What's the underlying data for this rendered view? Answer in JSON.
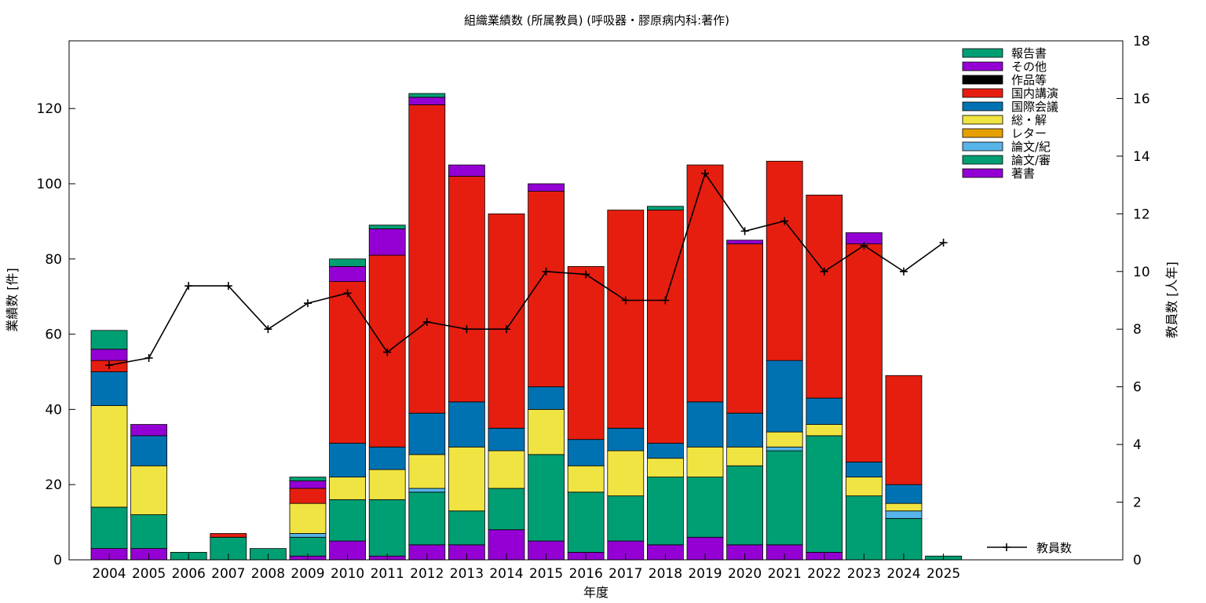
{
  "chart_data": {
    "type": "bar",
    "stacked": true,
    "title": "組織業績数 (所属教員) (呼吸器・膠原病内科:著作)",
    "xlabel": "年度",
    "ylabel": "業績数 [件]",
    "y2label": "教員数 [人年]",
    "ylim": [
      0,
      138
    ],
    "y2lim": [
      0,
      18
    ],
    "yticks": [
      0,
      20,
      40,
      60,
      80,
      100,
      120
    ],
    "y2ticks": [
      0,
      2,
      4,
      6,
      8,
      10,
      12,
      14,
      16,
      18
    ],
    "categories": [
      "2004",
      "2005",
      "2006",
      "2007",
      "2008",
      "2009",
      "2010",
      "2011",
      "2012",
      "2013",
      "2014",
      "2015",
      "2016",
      "2017",
      "2018",
      "2019",
      "2020",
      "2021",
      "2022",
      "2023",
      "2024",
      "2025"
    ],
    "legend_placement": "top-right",
    "series": [
      {
        "name": "著書",
        "color": "#9400d3",
        "values": [
          3,
          3,
          0,
          0,
          0,
          1,
          5,
          1,
          4,
          4,
          8,
          5,
          2,
          5,
          4,
          6,
          4,
          4,
          2,
          0,
          0,
          0
        ]
      },
      {
        "name": "論文/審",
        "color": "#009e73",
        "values": [
          11,
          9,
          2,
          6,
          3,
          5,
          11,
          15,
          14,
          9,
          11,
          23,
          16,
          12,
          18,
          16,
          21,
          25,
          31,
          17,
          11,
          1
        ]
      },
      {
        "name": "論文/紀",
        "color": "#56b4e9",
        "values": [
          0,
          0,
          0,
          0,
          0,
          1,
          0,
          0,
          1,
          0,
          0,
          0,
          0,
          0,
          0,
          0,
          0,
          1,
          0,
          0,
          2,
          0
        ]
      },
      {
        "name": "レター",
        "color": "#e69f00",
        "values": [
          0,
          0,
          0,
          0,
          0,
          0,
          0,
          0,
          0,
          0,
          0,
          0,
          0,
          0,
          0,
          0,
          0,
          0,
          0,
          0,
          0,
          0
        ]
      },
      {
        "name": "総・解",
        "color": "#f0e442",
        "values": [
          27,
          13,
          0,
          0,
          0,
          8,
          6,
          8,
          9,
          17,
          10,
          12,
          7,
          12,
          5,
          8,
          5,
          4,
          3,
          5,
          2,
          0
        ]
      },
      {
        "name": "国際会議",
        "color": "#0072b2",
        "values": [
          9,
          8,
          0,
          0,
          0,
          0,
          9,
          6,
          11,
          12,
          6,
          6,
          7,
          6,
          4,
          12,
          9,
          19,
          7,
          4,
          5,
          0
        ]
      },
      {
        "name": "国内講演",
        "color": "#e51e10",
        "values": [
          3,
          0,
          0,
          1,
          0,
          4,
          43,
          51,
          82,
          60,
          57,
          52,
          46,
          58,
          62,
          63,
          45,
          53,
          54,
          58,
          29,
          0
        ]
      },
      {
        "name": "作品等",
        "color": "#000000",
        "values": [
          0,
          0,
          0,
          0,
          0,
          0,
          0,
          0,
          0,
          0,
          0,
          0,
          0,
          0,
          0,
          0,
          0,
          0,
          0,
          0,
          0,
          0
        ]
      },
      {
        "name": "その他",
        "color": "#9400d3",
        "values": [
          3,
          3,
          0,
          0,
          0,
          2,
          4,
          7,
          2,
          3,
          0,
          2,
          0,
          0,
          0,
          0,
          1,
          0,
          0,
          3,
          0,
          0
        ]
      },
      {
        "name": "報告書",
        "color": "#009e73",
        "values": [
          5,
          0,
          0,
          0,
          0,
          1,
          2,
          1,
          1,
          0,
          0,
          0,
          0,
          0,
          1,
          0,
          0,
          0,
          0,
          0,
          0,
          0
        ]
      }
    ],
    "line_series": {
      "name": "教員数",
      "color": "#000000",
      "axis": "y2",
      "categories": [
        "2004",
        "2005",
        "2006",
        "2007",
        "2008",
        "2009",
        "2010",
        "2011",
        "2012",
        "2013",
        "2014",
        "2015",
        "2016",
        "2017",
        "2018",
        "2019",
        "2020",
        "2021",
        "2022",
        "2023",
        "2024",
        "2025"
      ],
      "values": [
        6.75,
        7.0,
        9.5,
        9.5,
        8.0,
        8.9,
        9.25,
        7.2,
        8.25,
        8.0,
        8.0,
        10.0,
        9.9,
        9.0,
        9.0,
        13.4,
        11.4,
        11.75,
        10.0,
        10.9,
        10.0,
        11.0
      ]
    }
  }
}
